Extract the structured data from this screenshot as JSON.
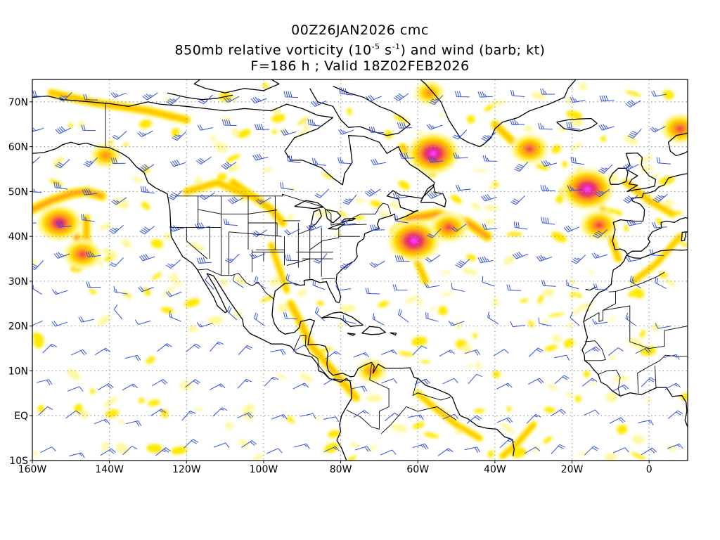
{
  "header": {
    "line1": "00Z26JAN2026 cmc",
    "line2_prefix": "850mb relative vorticity (10",
    "line2_exp1": "-5",
    "line2_mid": " s",
    "line2_exp2": "-1",
    "line2_suffix": ") and wind (barb; kt)",
    "line3": "F=186 h ; Valid 18Z02FEB2026"
  },
  "axes": {
    "lat_labels": [
      "70N",
      "60N",
      "50N",
      "40N",
      "30N",
      "20N",
      "10N",
      "EQ",
      "10S"
    ],
    "lon_labels": [
      "160W",
      "140W",
      "120W",
      "100W",
      "80W",
      "60W",
      "40W",
      "20W",
      "0"
    ]
  },
  "colors": {
    "background": "#ffffff",
    "grid": "#9a9a9a",
    "coast": "#000000",
    "barb": "#3050e0",
    "shade_levels": [
      "#fff8a0",
      "#ffe800",
      "#ffc000",
      "#ff9020",
      "#f04040",
      "#e0208c",
      "#ff40ff"
    ]
  },
  "vorticity_features": [
    {
      "name": "north-pacific-low",
      "lon": -153,
      "lat": 43,
      "level": 5
    },
    {
      "name": "pacific-arc-south",
      "lon": -147,
      "lat": 36,
      "level": 4
    },
    {
      "name": "gulf-of-alaska",
      "lon": -141,
      "lat": 58,
      "level": 3
    },
    {
      "name": "labrador-low",
      "lon": -56,
      "lat": 58.5,
      "level": 6
    },
    {
      "name": "atlantic-low-west",
      "lon": -61,
      "lat": 39,
      "level": 6
    },
    {
      "name": "atlantic-front",
      "lon": -52,
      "lat": 42,
      "level": 4
    },
    {
      "name": "east-atlantic-low",
      "lon": -16,
      "lat": 50.5,
      "level": 6
    },
    {
      "name": "azores-area",
      "lon": -13,
      "lat": 42.5,
      "level": 4
    },
    {
      "name": "iceland-south",
      "lon": -31,
      "lat": 59.5,
      "level": 4
    },
    {
      "name": "greenland-east",
      "lon": -57,
      "lat": 72,
      "level": 3
    },
    {
      "name": "norway-coast",
      "lon": 8,
      "lat": 64,
      "level": 4
    },
    {
      "name": "caribbean-band",
      "lon": -72,
      "lat": 10,
      "level": 3
    }
  ]
}
